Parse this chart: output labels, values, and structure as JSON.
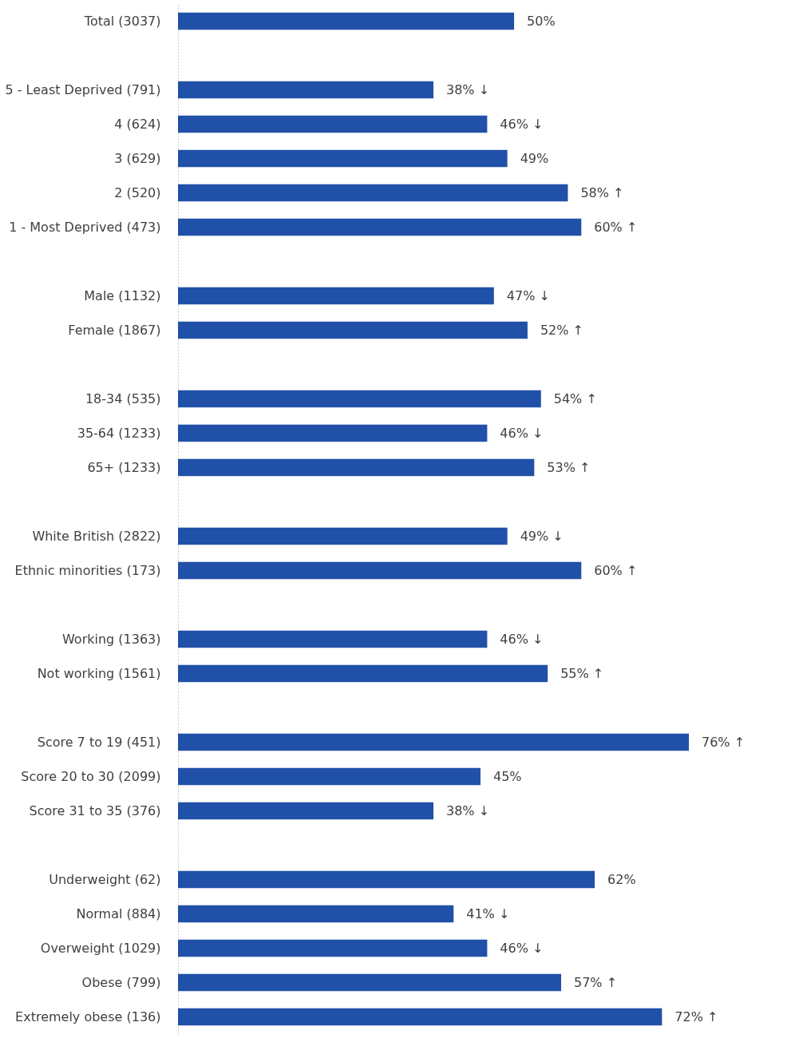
{
  "chart_data": {
    "type": "bar",
    "orientation": "horizontal",
    "grid": false,
    "categories": [
      "Total (3037)",
      null,
      "5 - Least Deprived (791)",
      "4 (624)",
      "3 (629)",
      "2 (520)",
      "1 - Most Deprived (473)",
      null,
      "Male (1132)",
      "Female (1867)",
      null,
      "18-34 (535)",
      "35-64 (1233)",
      "65+ (1233)",
      null,
      "White British (2822)",
      "Ethnic minorities (173)",
      null,
      "Working (1363)",
      "Not working (1561)",
      null,
      "Score 7 to 19 (451)",
      "Score 20 to 30 (2099)",
      "Score 31 to 35 (376)",
      null,
      "Underweight (62)",
      "Normal (884)",
      "Overweight (1029)",
      "Obese (799)",
      "Extremely obese (136)"
    ],
    "values": [
      50,
      null,
      38,
      46,
      49,
      58,
      60,
      null,
      47,
      52,
      null,
      54,
      46,
      53,
      null,
      49,
      60,
      null,
      46,
      55,
      null,
      76,
      45,
      38,
      null,
      62,
      41,
      46,
      57,
      72
    ],
    "value_labels": [
      "50%",
      null,
      "38% ↓",
      "46% ↓",
      "49%",
      "58% ↑",
      "60% ↑",
      null,
      "47% ↓",
      "52% ↑",
      null,
      "54% ↑",
      "46% ↓",
      "53% ↑",
      null,
      "49% ↓",
      "60% ↑",
      null,
      "46% ↓",
      "55% ↑",
      null,
      "76% ↑",
      "45%",
      "38% ↓",
      null,
      "62%",
      "41% ↓",
      "46% ↓",
      "57% ↑",
      "72% ↑"
    ],
    "color": "#2150a8"
  }
}
